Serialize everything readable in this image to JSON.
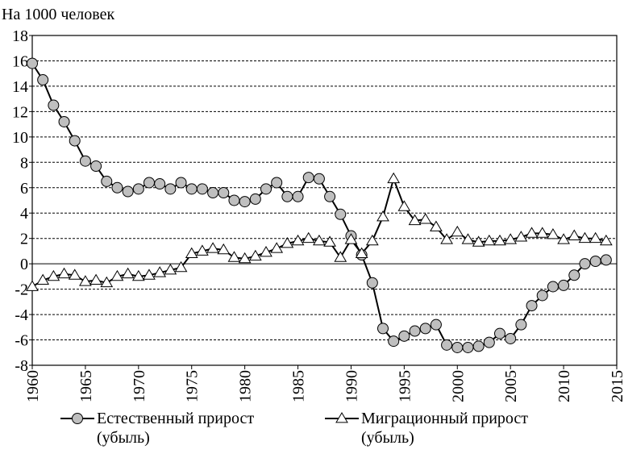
{
  "chart_data": {
    "type": "line",
    "y_axis_label": "На 1000 человек",
    "x": [
      1960,
      1961,
      1962,
      1963,
      1964,
      1965,
      1966,
      1967,
      1968,
      1969,
      1970,
      1971,
      1972,
      1973,
      1974,
      1975,
      1976,
      1977,
      1978,
      1979,
      1980,
      1981,
      1982,
      1983,
      1984,
      1985,
      1986,
      1987,
      1988,
      1989,
      1990,
      1991,
      1992,
      1993,
      1994,
      1995,
      1996,
      1997,
      1998,
      1999,
      2000,
      2001,
      2002,
      2003,
      2004,
      2005,
      2006,
      2007,
      2008,
      2009,
      2010,
      2011,
      2012,
      2013,
      2014
    ],
    "series": [
      {
        "name": "Естественный прирост (убыль)",
        "color": "#bfbfbf",
        "marker": "circle",
        "values": [
          15.8,
          14.5,
          12.5,
          11.2,
          9.7,
          8.1,
          7.7,
          6.5,
          6.0,
          5.7,
          5.9,
          6.4,
          6.3,
          5.9,
          6.4,
          5.9,
          5.9,
          5.6,
          5.6,
          5.0,
          4.9,
          5.1,
          5.9,
          6.4,
          5.3,
          5.3,
          6.8,
          6.7,
          5.3,
          3.9,
          2.2,
          0.7,
          -1.5,
          -5.1,
          -6.1,
          -5.7,
          -5.3,
          -5.1,
          -4.8,
          -6.4,
          -6.6,
          -6.6,
          -6.5,
          -6.2,
          -5.5,
          -5.9,
          -4.8,
          -3.3,
          -2.5,
          -1.8,
          -1.7,
          -0.9,
          0.0,
          0.2,
          0.3
        ]
      },
      {
        "name": "Миграционный прирост (убыль)",
        "color": "#ffffff",
        "marker": "triangle",
        "values": [
          -1.8,
          -1.3,
          -1.0,
          -0.8,
          -0.9,
          -1.4,
          -1.3,
          -1.5,
          -1.0,
          -0.8,
          -1.0,
          -0.9,
          -0.7,
          -0.5,
          -0.3,
          0.8,
          1.0,
          1.2,
          1.1,
          0.5,
          0.4,
          0.6,
          0.9,
          1.2,
          1.6,
          1.8,
          2.0,
          1.8,
          1.7,
          0.5,
          1.9,
          0.8,
          1.8,
          3.7,
          6.7,
          4.5,
          3.4,
          3.5,
          2.9,
          1.9,
          2.5,
          1.9,
          1.7,
          1.8,
          1.8,
          1.9,
          2.1,
          2.4,
          2.4,
          2.3,
          1.9,
          2.2,
          2.0,
          2.0,
          1.8
        ]
      }
    ],
    "xlim": [
      1960,
      2015
    ],
    "xticks": [
      1960,
      1965,
      1970,
      1975,
      1980,
      1985,
      1990,
      1995,
      2000,
      2005,
      2010,
      2015
    ],
    "ylim": [
      -8,
      18
    ],
    "yticks": [
      -8,
      -6,
      -4,
      -2,
      0,
      2,
      4,
      6,
      8,
      10,
      12,
      14,
      16,
      18
    ],
    "grid": true
  }
}
